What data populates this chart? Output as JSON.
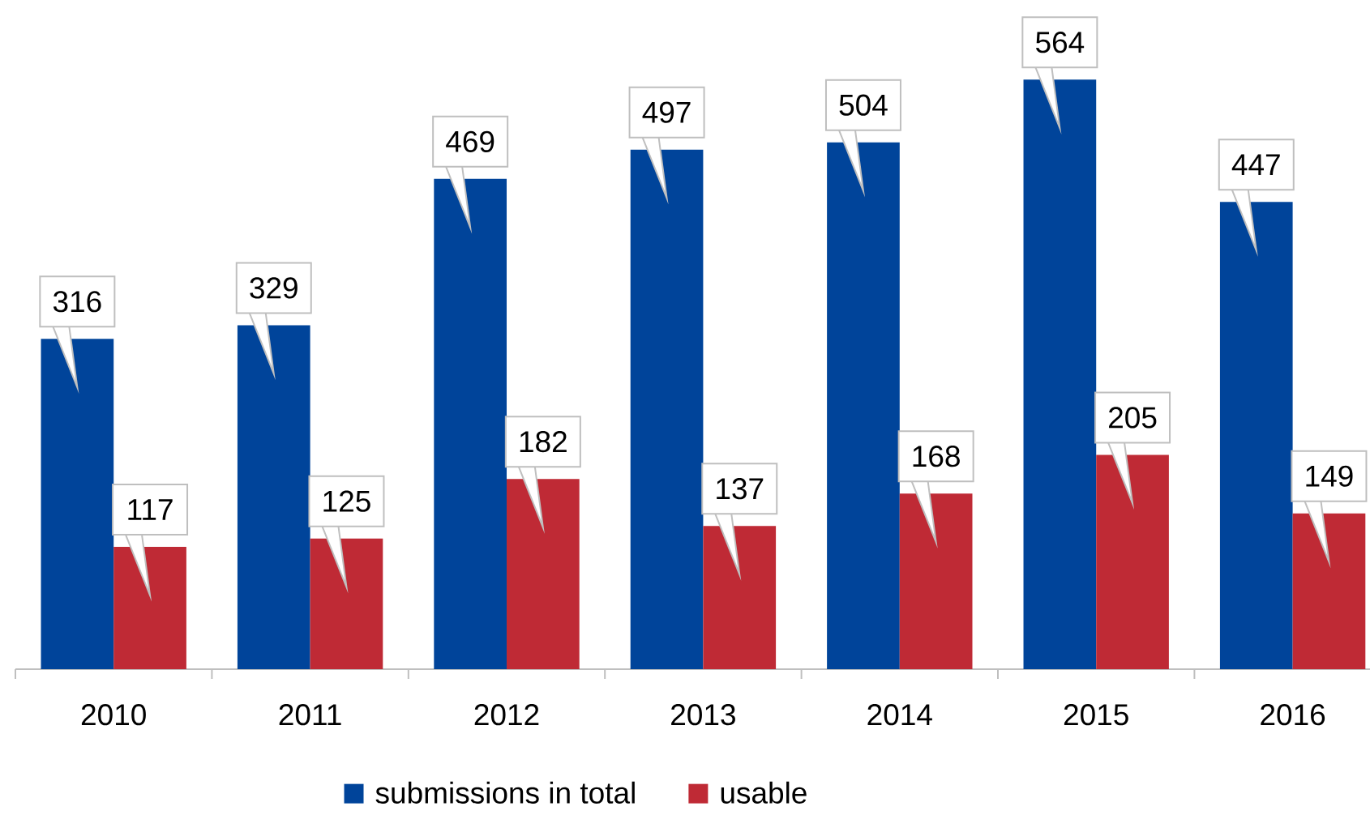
{
  "chart_data": {
    "type": "bar",
    "categories": [
      "2010",
      "2011",
      "2012",
      "2013",
      "2014",
      "2015",
      "2016"
    ],
    "series": [
      {
        "name": "submissions in total",
        "color": "#00449a",
        "values": [
          316,
          329,
          469,
          497,
          504,
          564,
          447
        ]
      },
      {
        "name": "usable",
        "color": "#bf2a35",
        "values": [
          117,
          125,
          182,
          137,
          168,
          205,
          149
        ]
      }
    ],
    "data_labels": true,
    "legend": "bottom",
    "tick_labels": "x"
  }
}
